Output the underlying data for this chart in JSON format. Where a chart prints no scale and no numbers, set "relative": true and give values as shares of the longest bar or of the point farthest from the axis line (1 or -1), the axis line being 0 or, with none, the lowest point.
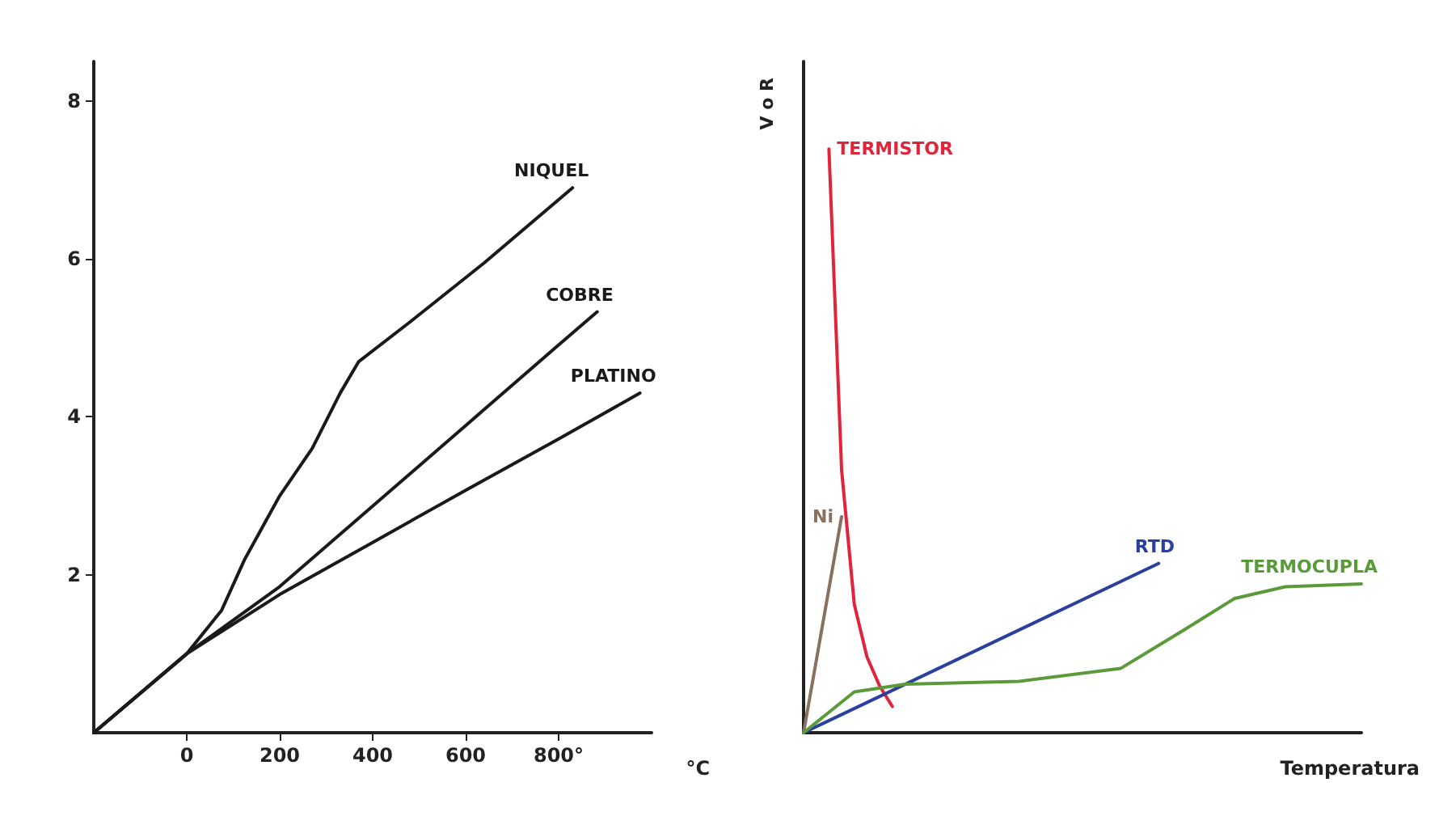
{
  "chart_data": [
    {
      "type": "line",
      "xlabel": "°C",
      "xlim": [
        -200,
        1000
      ],
      "ylim": [
        0,
        8.5
      ],
      "xticks": [
        0,
        200,
        400,
        600,
        {
          "value": 800,
          "label": "800°"
        }
      ],
      "yticks": [
        2,
        4,
        6,
        8
      ],
      "grid": false,
      "legend": false,
      "marker": "none",
      "series": [
        {
          "name": "NIQUEL",
          "color": "#1a1a1a",
          "x": [
            -200,
            0,
            75,
            125,
            200,
            270,
            330,
            370,
            480,
            640,
            830
          ],
          "values": [
            0,
            1.0,
            1.55,
            2.2,
            3.0,
            3.6,
            4.3,
            4.7,
            5.2,
            5.95,
            6.9
          ]
        },
        {
          "name": "COBRE",
          "color": "#1a1a1a",
          "x": [
            -200,
            0,
            200,
            400,
            600,
            800,
            883
          ],
          "values": [
            0,
            1.0,
            1.85,
            2.87,
            3.89,
            4.91,
            5.33
          ]
        },
        {
          "name": "PLATINO",
          "color": "#1a1a1a",
          "x": [
            -200,
            0,
            200,
            400,
            600,
            800,
            975
          ],
          "values": [
            0,
            1.0,
            1.75,
            2.41,
            3.07,
            3.72,
            4.3
          ]
        }
      ]
    },
    {
      "type": "line",
      "xlabel": "Temperatura",
      "ylabel": "V o R",
      "relative": true,
      "grid": false,
      "legend": false,
      "marker": "none",
      "categories": [
        null,
        null,
        null,
        null,
        null,
        null,
        null,
        null,
        null,
        null,
        null,
        null,
        null,
        null,
        null,
        null,
        null,
        null,
        null,
        null,
        null,
        null,
        null,
        null,
        null,
        null,
        null,
        null,
        null,
        null,
        null,
        null,
        null,
        null,
        null,
        null,
        null,
        null,
        null,
        null,
        null,
        null,
        null,
        null,
        null
      ],
      "series": [
        {
          "name": "TERMISTOR",
          "color": "#e0243a",
          "values": [
            null,
            null,
            1.0,
            0.45,
            0.22,
            0.13,
            0.08,
            0.045,
            null,
            null,
            null,
            null,
            null,
            null,
            null,
            null,
            null,
            null,
            null,
            null,
            null,
            null,
            null,
            null,
            null,
            null,
            null,
            null,
            null,
            null,
            null,
            null,
            null,
            null,
            null,
            null,
            null,
            null,
            null,
            null,
            null,
            null,
            null,
            null,
            null
          ]
        },
        {
          "name": "Ni",
          "color": "#8b6f5f",
          "values": [
            0,
            null,
            null,
            0.37,
            null,
            null,
            null,
            null,
            null,
            null,
            null,
            null,
            null,
            null,
            null,
            null,
            null,
            null,
            null,
            null,
            null,
            null,
            null,
            null,
            null,
            null,
            null,
            null,
            null,
            null,
            null,
            null,
            null,
            null,
            null,
            null,
            null,
            null,
            null,
            null,
            null,
            null,
            null,
            null,
            null
          ]
        },
        {
          "name": "RTD",
          "color": "#2a3fa0",
          "values": [
            0,
            null,
            null,
            null,
            null,
            null,
            null,
            null,
            null,
            null,
            null,
            null,
            null,
            null,
            null,
            null,
            null,
            null,
            null,
            null,
            null,
            null,
            null,
            null,
            null,
            null,
            null,
            null,
            0.29,
            null,
            null,
            null,
            null,
            null,
            null,
            null,
            null,
            null,
            null,
            null,
            null,
            null,
            null,
            null,
            null
          ]
        },
        {
          "name": "TERMOCUPLA",
          "color": "#5a9a3a",
          "values": [
            0,
            null,
            null,
            null,
            0.07,
            null,
            null,
            null,
            0.083,
            null,
            null,
            null,
            null,
            null,
            null,
            null,
            null,
            0.088,
            null,
            null,
            null,
            null,
            null,
            null,
            null,
            0.11,
            null,
            null,
            null,
            null,
            0.176,
            null,
            null,
            null,
            0.23,
            null,
            null,
            null,
            0.25,
            null,
            null,
            null,
            null,
            null,
            0.255
          ]
        }
      ]
    }
  ]
}
